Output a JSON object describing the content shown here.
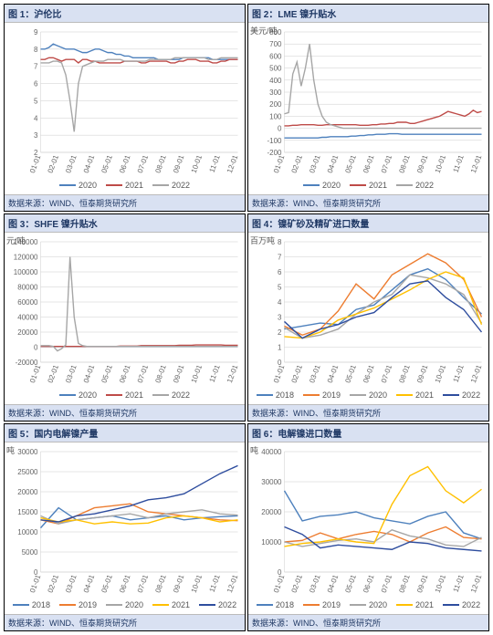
{
  "source_text": "数据来源：WIND、恒泰期货研究所",
  "palettes": {
    "p3": {
      "2020": "#4e81bd",
      "2021": "#be4b48",
      "2022": "#a6a6a6"
    },
    "p5": {
      "2018": "#4e81bd",
      "2019": "#ed7d31",
      "2020": "#a6a6a6",
      "2021": "#ffc000",
      "2022": "#2e4d9e"
    }
  },
  "x_ticks_months": [
    "01-01",
    "02-01",
    "03-01",
    "04-01",
    "05-01",
    "06-01",
    "07-01",
    "08-01",
    "09-01",
    "10-01",
    "11-01",
    "12-01"
  ],
  "charts": [
    {
      "id": "c1",
      "title": "图 1：沪伦比",
      "ylabel": "",
      "ylim": [
        2,
        9
      ],
      "ytick_step": 1,
      "legend_palette": "p3",
      "dense": true,
      "series": {
        "2020": [
          8.0,
          8.0,
          8.1,
          8.3,
          8.2,
          8.1,
          8.0,
          8.0,
          8.0,
          7.9,
          7.8,
          7.8,
          7.9,
          8.0,
          8.0,
          7.9,
          7.8,
          7.8,
          7.7,
          7.7,
          7.6,
          7.6,
          7.5,
          7.5,
          7.5,
          7.5,
          7.5,
          7.5,
          7.4,
          7.4,
          7.4,
          7.4,
          7.4,
          7.4,
          7.5,
          7.5,
          7.5,
          7.5,
          7.5,
          7.5,
          7.5,
          7.4,
          7.4,
          7.4,
          7.4,
          7.4,
          7.4,
          7.4
        ],
        "2021": [
          7.4,
          7.4,
          7.5,
          7.5,
          7.4,
          7.3,
          7.4,
          7.4,
          7.4,
          7.2,
          7.4,
          7.4,
          7.3,
          7.3,
          7.2,
          7.2,
          7.2,
          7.2,
          7.2,
          7.2,
          7.3,
          7.3,
          7.3,
          7.3,
          7.2,
          7.2,
          7.3,
          7.3,
          7.3,
          7.3,
          7.3,
          7.2,
          7.2,
          7.3,
          7.3,
          7.4,
          7.4,
          7.4,
          7.3,
          7.3,
          7.3,
          7.2,
          7.2,
          7.3,
          7.3,
          7.4,
          7.4,
          7.4
        ],
        "2022": [
          7.2,
          7.2,
          7.2,
          7.3,
          7.3,
          7.2,
          6.5,
          5.0,
          3.2,
          6.0,
          7.0,
          7.1,
          7.2,
          7.3,
          7.3,
          7.3,
          7.4,
          7.4,
          7.4,
          7.4,
          7.3,
          7.3,
          7.3,
          7.3,
          7.3,
          7.3,
          7.4,
          7.4,
          7.4,
          7.4,
          7.4,
          7.4,
          7.5,
          7.5,
          7.5,
          7.5,
          7.5,
          7.5,
          7.5,
          7.5,
          7.4,
          7.4,
          7.4,
          7.5,
          7.5,
          7.5,
          7.5,
          7.5
        ]
      }
    },
    {
      "id": "c2",
      "title": "图 2：LME 镍升贴水",
      "ylabel": "美元/吨",
      "ylim": [
        -200,
        800
      ],
      "ytick_step": 100,
      "legend_palette": "p3",
      "dense": true,
      "series": {
        "2020": [
          -80,
          -80,
          -80,
          -80,
          -80,
          -80,
          -80,
          -80,
          -80,
          -75,
          -75,
          -70,
          -70,
          -70,
          -70,
          -70,
          -65,
          -65,
          -60,
          -60,
          -55,
          -55,
          -50,
          -50,
          -50,
          -45,
          -45,
          -45,
          -50,
          -50,
          -50,
          -50,
          -50,
          -50,
          -50,
          -50,
          -50,
          -50,
          -50,
          -50,
          -50,
          -50,
          -50,
          -50,
          -50,
          -50,
          -50,
          -50
        ],
        "2021": [
          20,
          20,
          25,
          25,
          30,
          30,
          30,
          30,
          25,
          25,
          30,
          30,
          30,
          30,
          30,
          30,
          30,
          30,
          25,
          25,
          25,
          30,
          30,
          35,
          35,
          40,
          40,
          50,
          50,
          50,
          40,
          40,
          50,
          60,
          70,
          80,
          90,
          100,
          120,
          140,
          130,
          120,
          110,
          100,
          120,
          150,
          130,
          140
        ],
        "2022": [
          120,
          130,
          450,
          550,
          350,
          500,
          700,
          400,
          200,
          100,
          50,
          30,
          20,
          10,
          0,
          0,
          0,
          0,
          0,
          0,
          0,
          0,
          0,
          0,
          0,
          0,
          0,
          0,
          0,
          0,
          0,
          0,
          0,
          0,
          0,
          0,
          0,
          0,
          0,
          0,
          0,
          0,
          0,
          0,
          0,
          0,
          0,
          0
        ]
      }
    },
    {
      "id": "c3",
      "title": "图 3：SHFE 镍升贴水",
      "ylabel": "元/吨",
      "ylim": [
        -20000,
        140000
      ],
      "ytick_step": 20000,
      "legend_palette": "p3",
      "dense": true,
      "series": {
        "2020": [
          1000,
          1000,
          1000,
          1000,
          1000,
          1000,
          1000,
          1000,
          1000,
          1000,
          1000,
          1000,
          1000,
          1000,
          1000,
          1000,
          1000,
          1000,
          1000,
          1000,
          1000,
          1000,
          1000,
          1000,
          1000,
          1000,
          1000,
          1000,
          1000,
          1000,
          1000,
          1000,
          1000,
          1000,
          1000,
          1000,
          1000,
          1000,
          1000,
          1000,
          1000,
          1000,
          1000,
          1000,
          1000,
          1000,
          1000,
          1000
        ],
        "2021": [
          1000,
          1000,
          1000,
          1000,
          1000,
          1000,
          1000,
          1000,
          1000,
          1000,
          1000,
          1000,
          1000,
          1000,
          1000,
          1000,
          1000,
          1000,
          1000,
          1500,
          1500,
          1500,
          1500,
          1500,
          2000,
          2000,
          2000,
          2000,
          2000,
          2000,
          2000,
          2000,
          2000,
          2500,
          2500,
          2500,
          2500,
          3000,
          3000,
          3000,
          3000,
          3000,
          3000,
          3000,
          2500,
          2500,
          2500,
          2500
        ],
        "2022": [
          2000,
          2000,
          2000,
          1000,
          -5000,
          -2000,
          3000,
          120000,
          40000,
          5000,
          2000,
          1000,
          1000,
          1000,
          1000,
          1000,
          1000,
          1000,
          1000,
          1000,
          1000,
          1000,
          1000,
          1000,
          1000,
          1000,
          1000,
          1000,
          1000,
          1000,
          1000,
          1000,
          1000,
          1000,
          1000,
          1000,
          1000,
          1000,
          1000,
          1000,
          1000,
          1000,
          1000,
          1000,
          1000,
          1000,
          1000,
          1000
        ]
      }
    },
    {
      "id": "c4",
      "title": "图 4：镍矿砂及精矿进口数量",
      "ylabel": "百万吨",
      "ylim": [
        0,
        8
      ],
      "ytick_step": 1,
      "legend_palette": "p5",
      "dense": false,
      "series": {
        "2018": [
          2.2,
          2.4,
          2.6,
          2.5,
          3.5,
          3.8,
          4.8,
          5.8,
          6.2,
          5.5,
          4.3,
          3.2
        ],
        "2019": [
          2.4,
          1.8,
          2.2,
          3.4,
          5.2,
          4.2,
          5.8,
          6.5,
          7.2,
          6.6,
          5.5,
          3.0
        ],
        "2020": [
          2.3,
          1.6,
          1.8,
          2.2,
          3.2,
          4.0,
          4.5,
          5.8,
          5.6,
          5.2,
          4.5,
          2.6
        ],
        "2021": [
          1.7,
          1.6,
          2.0,
          2.8,
          3.2,
          3.6,
          4.2,
          4.8,
          5.5,
          6.0,
          5.6,
          2.5
        ],
        "2022": [
          2.7,
          1.6,
          2.2,
          2.5,
          3.0,
          3.3,
          4.3,
          5.2,
          5.4,
          4.3,
          3.5,
          2.0
        ]
      }
    },
    {
      "id": "c5",
      "title": "图 5：国内电解镍产量",
      "ylabel": "吨",
      "ylim": [
        0,
        30000
      ],
      "ytick_step": 5000,
      "legend_palette": "p5",
      "dense": false,
      "series": {
        "2018": [
          11000,
          16000,
          13000,
          13500,
          14000,
          13000,
          13500,
          14000,
          13000,
          13500,
          13800,
          14000
        ],
        "2019": [
          13000,
          12000,
          14000,
          16000,
          16500,
          17000,
          15000,
          14500,
          14000,
          13500,
          13000,
          12800
        ],
        "2020": [
          14000,
          12000,
          13000,
          13500,
          14000,
          14500,
          13500,
          14500,
          15000,
          15500,
          14500,
          14200
        ],
        "2021": [
          13500,
          12500,
          13000,
          12000,
          12500,
          12000,
          12200,
          13500,
          14000,
          13500,
          12500,
          13000
        ],
        "2022": [
          13000,
          12500,
          14000,
          14500,
          15500,
          16500,
          18000,
          18500,
          19500,
          22000,
          24500,
          26500
        ]
      }
    },
    {
      "id": "c6",
      "title": "图 6：电解镍进口数量",
      "ylabel": "吨",
      "ylim": [
        0,
        40000
      ],
      "ytick_step": 10000,
      "legend_palette": "p5",
      "dense": false,
      "series": {
        "2018": [
          27000,
          17000,
          18500,
          19000,
          20000,
          18000,
          17000,
          16000,
          18500,
          20000,
          13000,
          11000
        ],
        "2019": [
          10000,
          10500,
          13000,
          11000,
          12500,
          13500,
          12500,
          10000,
          13000,
          15000,
          11500,
          11000
        ],
        "2020": [
          10000,
          8500,
          9500,
          10500,
          11000,
          10000,
          14000,
          12000,
          11000,
          9000,
          8500,
          11500
        ],
        "2021": [
          8500,
          9500,
          10000,
          11000,
          10000,
          9500,
          22500,
          32000,
          35000,
          27000,
          23000,
          27500
        ],
        "2022": [
          15000,
          12500,
          8000,
          9000,
          8500,
          8000,
          7500,
          10000,
          9500,
          8000,
          7500,
          7000
        ]
      }
    }
  ]
}
